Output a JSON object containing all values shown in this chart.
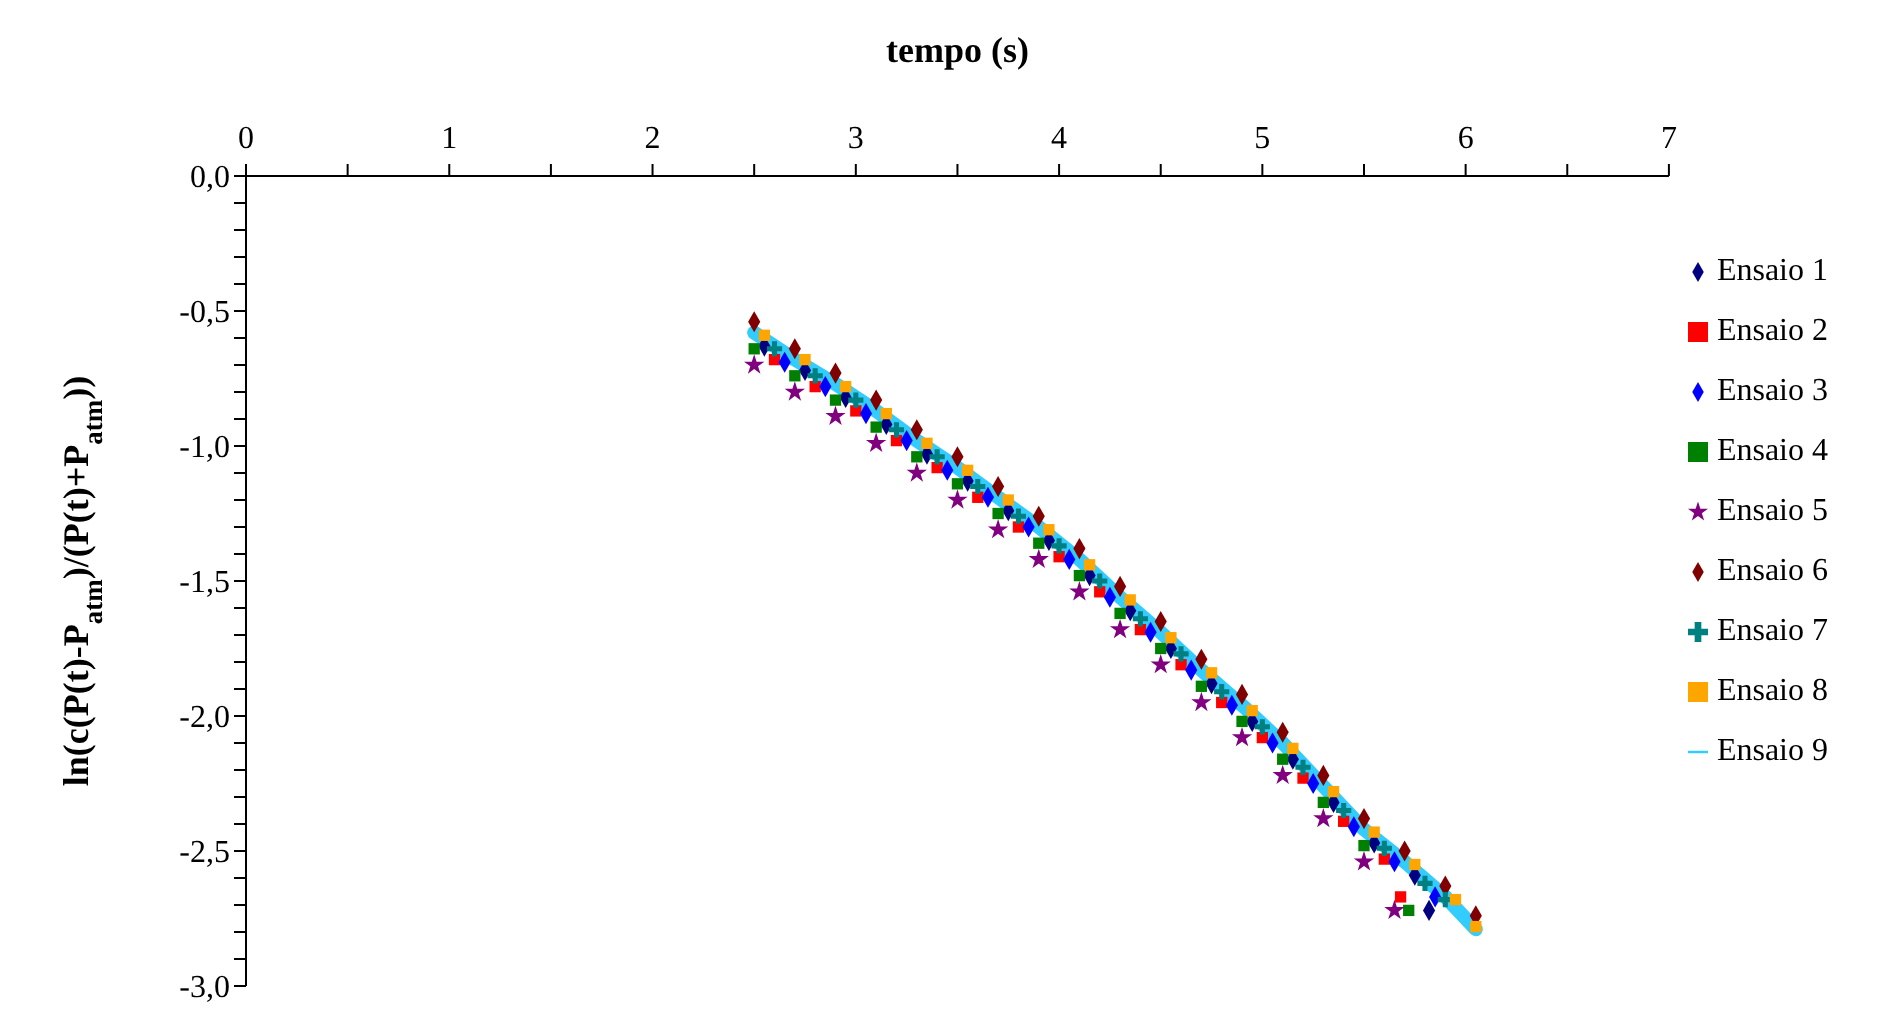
{
  "chart_data": {
    "type": "scatter",
    "xlabel": "tempo (s)",
    "ylabel": "ln(c(P(t)-P$_{atm}$)/(P(t)+P$_{atm}$))",
    "xlim": [
      0,
      7
    ],
    "xticks": [
      0,
      {
        "value": 0.5,
        "label": null
      },
      1,
      {
        "value": 1.5,
        "label": null
      },
      2,
      {
        "value": 2.5,
        "label": null
      },
      3,
      {
        "value": 3.5,
        "label": null
      },
      4,
      {
        "value": 4.5,
        "label": null
      },
      5,
      {
        "value": 5.5,
        "label": null
      },
      6,
      {
        "value": 6.5,
        "label": null
      },
      7
    ],
    "ylim": [
      -3,
      0
    ],
    "yticks": [
      {
        "value": 0,
        "label": "0,0"
      },
      {
        "value": -0.1,
        "label": null
      },
      {
        "value": -0.2,
        "label": null
      },
      {
        "value": -0.3,
        "label": null
      },
      {
        "value": -0.4,
        "label": null
      },
      {
        "value": -0.5,
        "label": "-0,5"
      },
      {
        "value": -0.6,
        "label": null
      },
      {
        "value": -0.7,
        "label": null
      },
      {
        "value": -0.8,
        "label": null
      },
      {
        "value": -0.9,
        "label": null
      },
      {
        "value": -1,
        "label": "-1,0"
      },
      {
        "value": -1.1,
        "label": null
      },
      {
        "value": -1.2,
        "label": null
      },
      {
        "value": -1.3,
        "label": null
      },
      {
        "value": -1.4,
        "label": null
      },
      {
        "value": -1.5,
        "label": "-1,5"
      },
      {
        "value": -1.6,
        "label": null
      },
      {
        "value": -1.7,
        "label": null
      },
      {
        "value": -1.8,
        "label": null
      },
      {
        "value": -1.9,
        "label": null
      },
      {
        "value": -2,
        "label": "-2,0"
      },
      {
        "value": -2.1,
        "label": null
      },
      {
        "value": -2.2,
        "label": null
      },
      {
        "value": -2.3,
        "label": null
      },
      {
        "value": -2.4,
        "label": null
      },
      {
        "value": -2.5,
        "label": "-2,5"
      },
      {
        "value": -2.6,
        "label": null
      },
      {
        "value": -2.7,
        "label": null
      },
      {
        "value": -2.8,
        "label": null
      },
      {
        "value": -2.9,
        "label": null
      },
      {
        "value": -3,
        "label": "-3,0"
      }
    ],
    "grid": false,
    "legend": "right",
    "series": [
      {
        "name": "Ensaio 1",
        "marker": "diamond",
        "color": "#000080",
        "x": [
          2.55,
          2.75,
          2.95,
          3.15,
          3.35,
          3.55,
          3.75,
          3.95,
          4.15,
          4.35,
          4.55,
          4.75,
          4.95,
          5.15,
          5.35,
          5.55,
          5.75,
          5.82
        ],
        "values": [
          -0.63,
          -0.72,
          -0.82,
          -0.92,
          -1.03,
          -1.13,
          -1.24,
          -1.35,
          -1.48,
          -1.61,
          -1.75,
          -1.88,
          -2.02,
          -2.16,
          -2.32,
          -2.47,
          -2.59,
          -2.72
        ]
      },
      {
        "name": "Ensaio 2",
        "marker": "square",
        "color": "#ff0000",
        "x": [
          2.6,
          2.8,
          3.0,
          3.2,
          3.4,
          3.6,
          3.8,
          4.0,
          4.2,
          4.4,
          4.6,
          4.8,
          5.0,
          5.2,
          5.4,
          5.6,
          5.68
        ],
        "values": [
          -0.68,
          -0.78,
          -0.87,
          -0.98,
          -1.08,
          -1.19,
          -1.3,
          -1.41,
          -1.54,
          -1.68,
          -1.81,
          -1.95,
          -2.08,
          -2.23,
          -2.39,
          -2.53,
          -2.67
        ]
      },
      {
        "name": "Ensaio 3",
        "marker": "diamond",
        "color": "#0000ff",
        "x": [
          2.65,
          2.85,
          3.05,
          3.25,
          3.45,
          3.65,
          3.85,
          4.05,
          4.25,
          4.45,
          4.65,
          4.85,
          5.05,
          5.25,
          5.45,
          5.65,
          5.85
        ],
        "values": [
          -0.69,
          -0.78,
          -0.88,
          -0.98,
          -1.09,
          -1.19,
          -1.3,
          -1.42,
          -1.56,
          -1.69,
          -1.83,
          -1.96,
          -2.1,
          -2.25,
          -2.41,
          -2.54,
          -2.67
        ]
      },
      {
        "name": "Ensaio 4",
        "marker": "square",
        "color": "#008000",
        "x": [
          2.5,
          2.7,
          2.9,
          3.1,
          3.3,
          3.5,
          3.7,
          3.9,
          4.1,
          4.3,
          4.5,
          4.7,
          4.9,
          5.1,
          5.3,
          5.5,
          5.72
        ],
        "values": [
          -0.64,
          -0.74,
          -0.83,
          -0.93,
          -1.04,
          -1.14,
          -1.25,
          -1.36,
          -1.48,
          -1.62,
          -1.75,
          -1.89,
          -2.02,
          -2.16,
          -2.32,
          -2.48,
          -2.72
        ]
      },
      {
        "name": "Ensaio 5",
        "marker": "star",
        "color": "#800080",
        "x": [
          2.5,
          2.7,
          2.9,
          3.1,
          3.3,
          3.5,
          3.7,
          3.9,
          4.1,
          4.3,
          4.5,
          4.7,
          4.9,
          5.1,
          5.3,
          5.5,
          5.65
        ],
        "values": [
          -0.7,
          -0.8,
          -0.89,
          -0.99,
          -1.1,
          -1.2,
          -1.31,
          -1.42,
          -1.54,
          -1.68,
          -1.81,
          -1.95,
          -2.08,
          -2.22,
          -2.38,
          -2.54,
          -2.72
        ]
      },
      {
        "name": "Ensaio 6",
        "marker": "diamond",
        "color": "#800000",
        "x": [
          2.5,
          2.7,
          2.9,
          3.1,
          3.3,
          3.5,
          3.7,
          3.9,
          4.1,
          4.3,
          4.5,
          4.7,
          4.9,
          5.1,
          5.3,
          5.5,
          5.7,
          5.9,
          6.05
        ],
        "values": [
          -0.54,
          -0.64,
          -0.73,
          -0.83,
          -0.94,
          -1.04,
          -1.15,
          -1.26,
          -1.38,
          -1.52,
          -1.65,
          -1.79,
          -1.92,
          -2.06,
          -2.22,
          -2.38,
          -2.5,
          -2.63,
          -2.74
        ]
      },
      {
        "name": "Ensaio 7",
        "marker": "cross",
        "color": "#008080",
        "x": [
          2.6,
          2.8,
          3.0,
          3.2,
          3.4,
          3.6,
          3.8,
          4.0,
          4.2,
          4.4,
          4.6,
          4.8,
          5.0,
          5.2,
          5.4,
          5.6,
          5.8,
          5.9
        ],
        "values": [
          -0.64,
          -0.74,
          -0.83,
          -0.94,
          -1.04,
          -1.15,
          -1.26,
          -1.37,
          -1.5,
          -1.64,
          -1.77,
          -1.91,
          -2.04,
          -2.19,
          -2.35,
          -2.49,
          -2.62,
          -2.68
        ]
      },
      {
        "name": "Ensaio 8",
        "marker": "square",
        "color": "#ffa500",
        "x": [
          2.55,
          2.75,
          2.95,
          3.15,
          3.35,
          3.55,
          3.75,
          3.95,
          4.15,
          4.35,
          4.55,
          4.75,
          4.95,
          5.15,
          5.35,
          5.55,
          5.75,
          5.95,
          6.05
        ],
        "values": [
          -0.59,
          -0.68,
          -0.78,
          -0.88,
          -0.99,
          -1.09,
          -1.2,
          -1.31,
          -1.44,
          -1.57,
          -1.71,
          -1.84,
          -1.98,
          -2.12,
          -2.28,
          -2.43,
          -2.55,
          -2.68,
          -2.78
        ]
      },
      {
        "name": "Ensaio 9",
        "type": "line",
        "marker": "none",
        "color": "#33ccff",
        "x": [
          2.5,
          2.7,
          2.9,
          3.1,
          3.3,
          3.5,
          3.7,
          3.9,
          4.1,
          4.3,
          4.5,
          4.7,
          4.9,
          5.1,
          5.3,
          5.5,
          5.7,
          5.9,
          6.05
        ],
        "values": [
          -0.58,
          -0.68,
          -0.77,
          -0.87,
          -0.98,
          -1.08,
          -1.19,
          -1.3,
          -1.42,
          -1.56,
          -1.69,
          -1.83,
          -1.96,
          -2.1,
          -2.26,
          -2.42,
          -2.54,
          -2.67,
          -2.79
        ]
      }
    ]
  }
}
